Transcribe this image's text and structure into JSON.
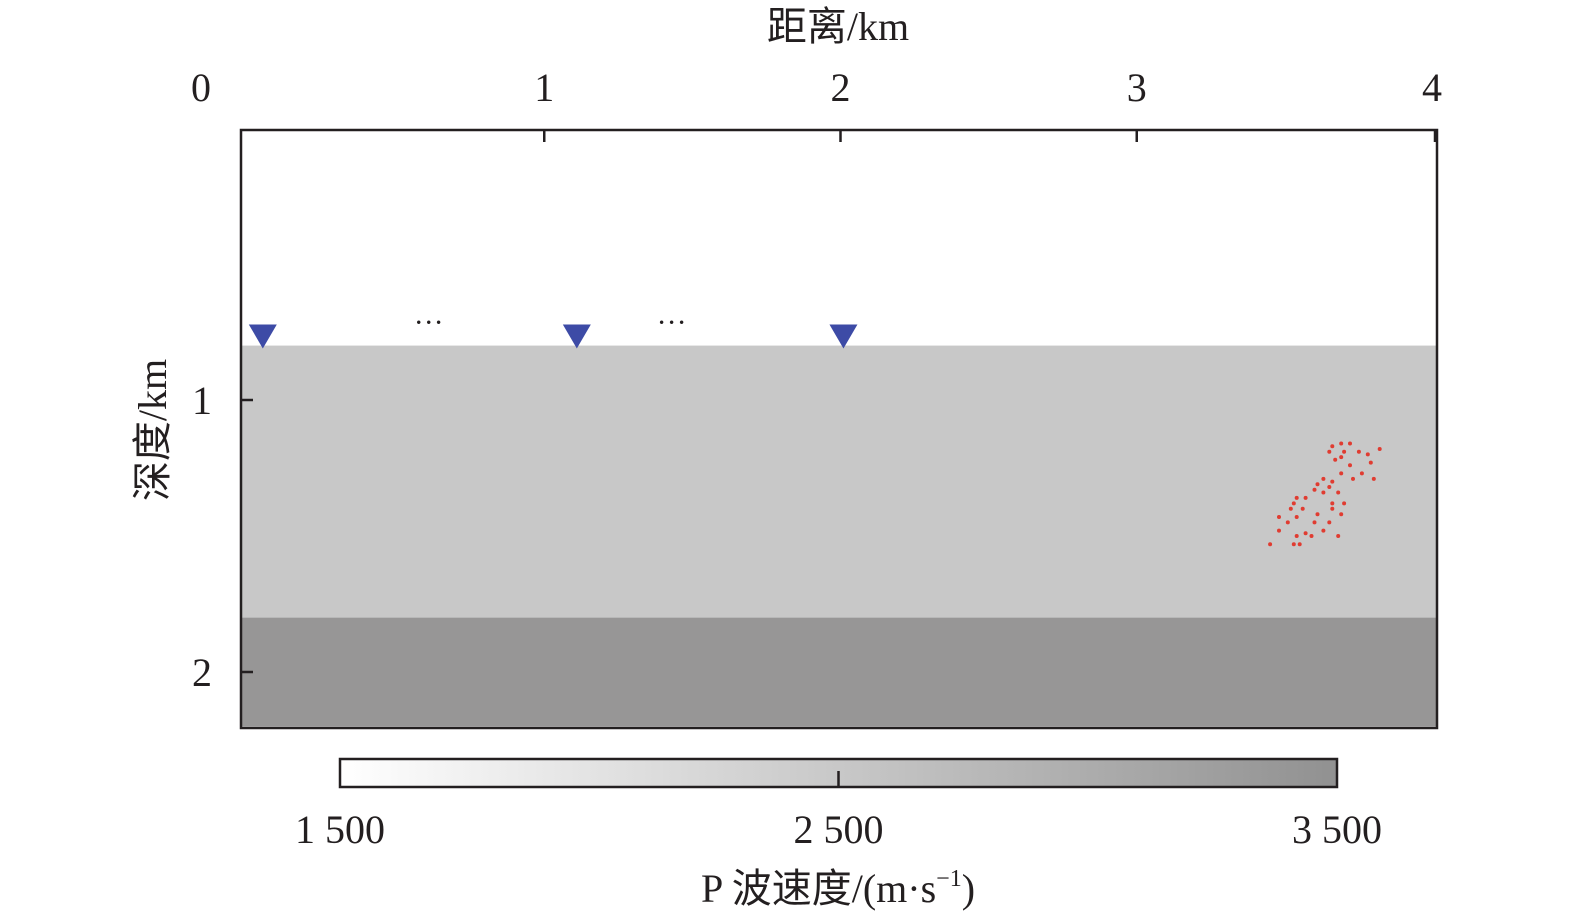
{
  "chart_data": {
    "type": "heatmap",
    "title": "",
    "xlabel": "距离/km",
    "ylabel": "深度/km",
    "x_axis_position": "top",
    "xlim": [
      0,
      4
    ],
    "ylim": [
      2.2,
      0
    ],
    "x_ticks": [
      {
        "value": 0,
        "label": "0"
      },
      {
        "value": 1,
        "label": "1"
      },
      {
        "value": 2,
        "label": "2"
      },
      {
        "value": 3,
        "label": "3"
      },
      {
        "value": 4,
        "label": "4"
      }
    ],
    "y_ticks": [
      {
        "value": 1,
        "label": "1"
      },
      {
        "value": 2,
        "label": "2"
      }
    ],
    "layers": [
      {
        "top": 0.0,
        "bottom": 0.8,
        "velocity": 1500,
        "color": "#ffffff"
      },
      {
        "top": 0.8,
        "bottom": 1.8,
        "velocity": 2200,
        "color": "#c8c8c8"
      },
      {
        "top": 1.8,
        "bottom": 2.2,
        "velocity": 3000,
        "color": "#979696"
      }
    ],
    "receivers": {
      "marker": "inverted-triangle",
      "color": "#3d4ba6",
      "depth": 0.77,
      "x": [
        0.05,
        1.11,
        2.01
      ]
    },
    "ellipsis_marks": [
      {
        "x": 0.61,
        "depth": 0.75,
        "text": "···"
      },
      {
        "x": 1.43,
        "depth": 0.75,
        "text": "···"
      }
    ],
    "sources": {
      "color": "#e03c31",
      "points": [
        [
          3.69,
          1.16
        ],
        [
          3.72,
          1.16
        ],
        [
          3.66,
          1.17
        ],
        [
          3.82,
          1.18
        ],
        [
          3.65,
          1.19
        ],
        [
          3.7,
          1.19
        ],
        [
          3.75,
          1.19
        ],
        [
          3.78,
          1.2
        ],
        [
          3.69,
          1.21
        ],
        [
          3.67,
          1.22
        ],
        [
          3.79,
          1.23
        ],
        [
          3.72,
          1.24
        ],
        [
          3.69,
          1.27
        ],
        [
          3.76,
          1.27
        ],
        [
          3.63,
          1.29
        ],
        [
          3.73,
          1.29
        ],
        [
          3.8,
          1.29
        ],
        [
          3.66,
          1.3
        ],
        [
          3.61,
          1.31
        ],
        [
          3.65,
          1.32
        ],
        [
          3.6,
          1.33
        ],
        [
          3.63,
          1.34
        ],
        [
          3.68,
          1.34
        ],
        [
          3.54,
          1.36
        ],
        [
          3.57,
          1.36
        ],
        [
          3.66,
          1.38
        ],
        [
          3.7,
          1.38
        ],
        [
          3.53,
          1.38
        ],
        [
          3.52,
          1.4
        ],
        [
          3.56,
          1.4
        ],
        [
          3.66,
          1.4
        ],
        [
          3.61,
          1.42
        ],
        [
          3.48,
          1.43
        ],
        [
          3.54,
          1.43
        ],
        [
          3.69,
          1.42
        ],
        [
          3.6,
          1.45
        ],
        [
          3.65,
          1.45
        ],
        [
          3.51,
          1.45
        ],
        [
          3.48,
          1.48
        ],
        [
          3.57,
          1.49
        ],
        [
          3.63,
          1.48
        ],
        [
          3.54,
          1.5
        ],
        [
          3.59,
          1.5
        ],
        [
          3.68,
          1.5
        ],
        [
          3.53,
          1.53
        ],
        [
          3.45,
          1.53
        ],
        [
          3.55,
          1.53
        ]
      ]
    },
    "colorbar": {
      "label_main": "P 波速度/(m·s",
      "label_sup": "−1",
      "label_end": ")",
      "range": [
        1500,
        3500
      ],
      "color_low": "#ffffff",
      "color_high": "#919191",
      "ticks": [
        {
          "value": 1500,
          "label": "1 500"
        },
        {
          "value": 2500,
          "label": "2 500"
        },
        {
          "value": 3500,
          "label": "3 500"
        }
      ]
    }
  }
}
